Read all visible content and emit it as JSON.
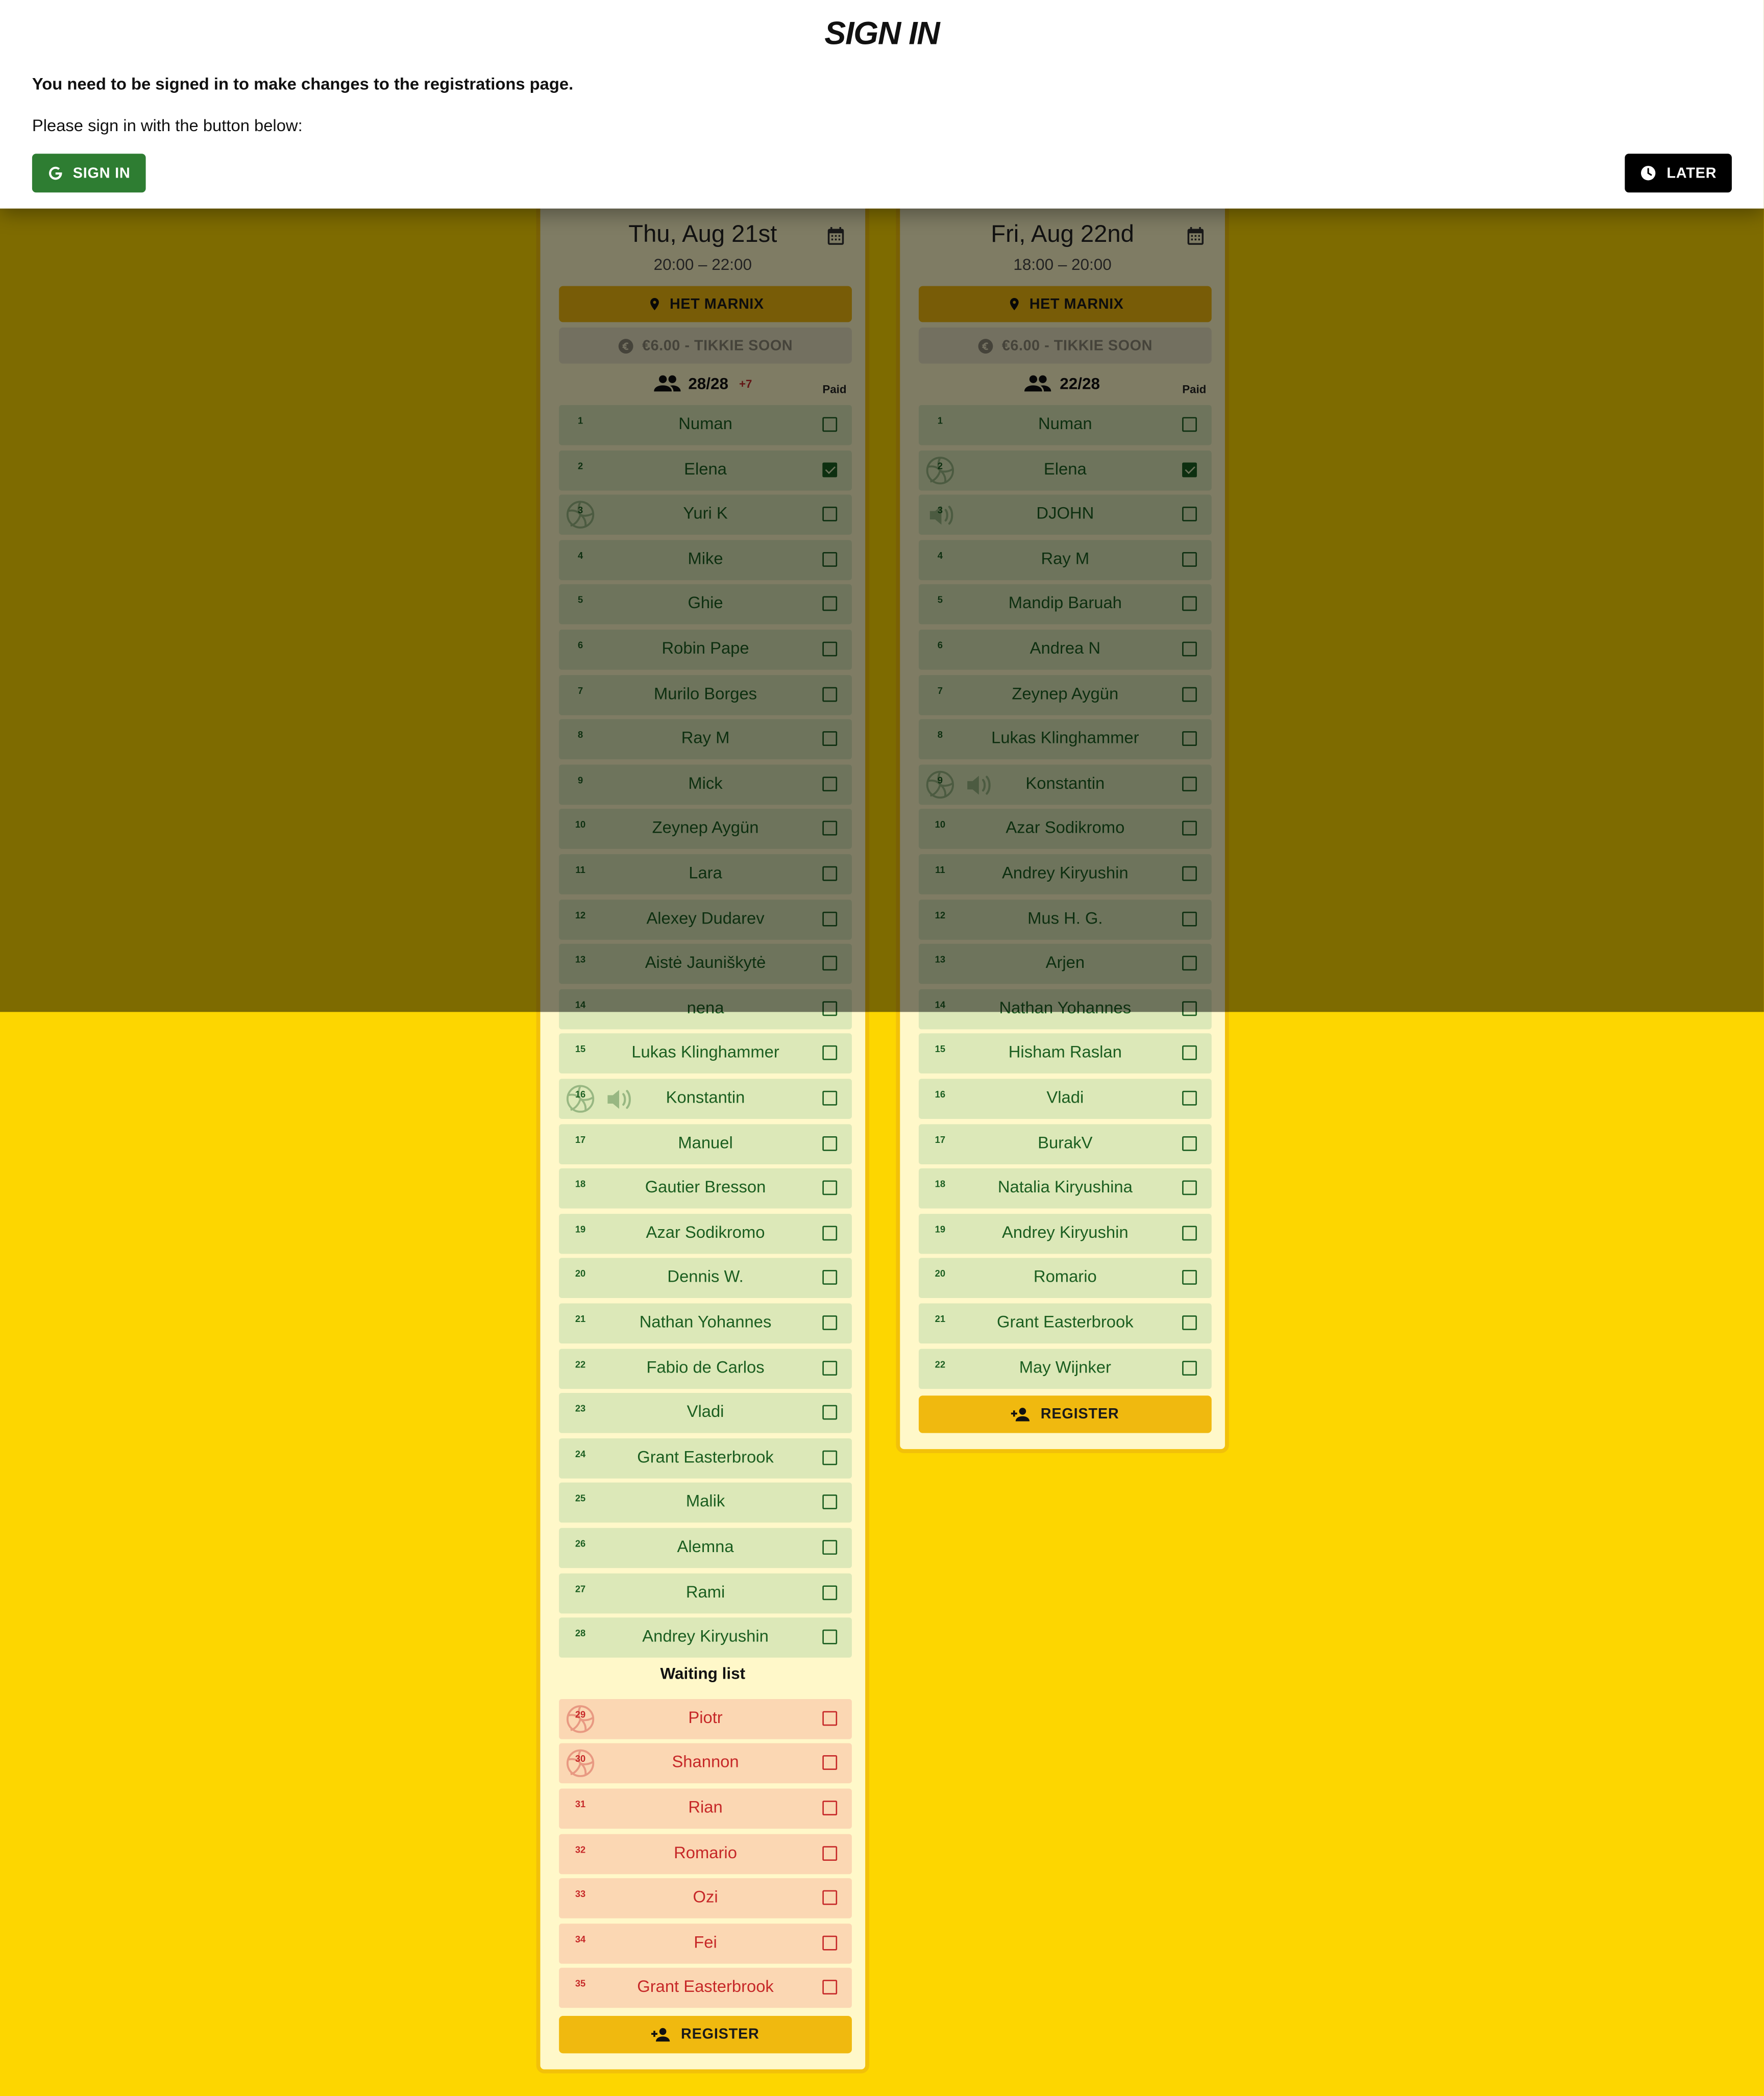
{
  "dialog": {
    "title": "SIGN IN",
    "message": "You need to be signed in to make changes to the registrations page.",
    "instruction": "Please sign in with the button below:",
    "signin_label": "SIGN IN",
    "later_label": "LATER"
  },
  "colors": {
    "page_bg": "#fdd600",
    "card_bg": "#fff8c9",
    "accent": "#f0b90f",
    "confirmed_row": "#dce8b8",
    "waiting_row": "#fbd7b3",
    "signin_green": "#2e7d32"
  },
  "events": [
    {
      "title": "Thu, Aug 21st",
      "time": "20:00 – 22:00",
      "location": "HET MARNIX",
      "price": "€6.00 - TIKKIE SOON",
      "count": "28/28",
      "extra": "+7",
      "paid_label": "Paid",
      "players": [
        {
          "num": "1",
          "name": "Numan",
          "paid": false,
          "icons": []
        },
        {
          "num": "2",
          "name": "Elena",
          "paid": true,
          "icons": []
        },
        {
          "num": "3",
          "name": "Yuri K",
          "paid": false,
          "icons": [
            "ball-icon"
          ]
        },
        {
          "num": "4",
          "name": "Mike",
          "paid": false,
          "icons": []
        },
        {
          "num": "5",
          "name": "Ghie",
          "paid": false,
          "icons": []
        },
        {
          "num": "6",
          "name": "Robin Pape",
          "paid": false,
          "icons": []
        },
        {
          "num": "7",
          "name": "Murilo Borges",
          "paid": false,
          "icons": []
        },
        {
          "num": "8",
          "name": "Ray M",
          "paid": false,
          "icons": []
        },
        {
          "num": "9",
          "name": "Mick",
          "paid": false,
          "icons": []
        },
        {
          "num": "10",
          "name": "Zeynep Aygün",
          "paid": false,
          "icons": []
        },
        {
          "num": "11",
          "name": "Lara",
          "paid": false,
          "icons": []
        },
        {
          "num": "12",
          "name": "Alexey Dudarev",
          "paid": false,
          "icons": []
        },
        {
          "num": "13",
          "name": "Aistė Jauniškytė",
          "paid": false,
          "icons": []
        },
        {
          "num": "14",
          "name": "nena",
          "paid": false,
          "icons": []
        },
        {
          "num": "15",
          "name": "Lukas Klinghammer",
          "paid": false,
          "icons": []
        },
        {
          "num": "16",
          "name": "Konstantin",
          "paid": false,
          "icons": [
            "ball-icon",
            "speaker-icon"
          ]
        },
        {
          "num": "17",
          "name": "Manuel",
          "paid": false,
          "icons": []
        },
        {
          "num": "18",
          "name": "Gautier Bresson",
          "paid": false,
          "icons": []
        },
        {
          "num": "19",
          "name": "Azar Sodikromo",
          "paid": false,
          "icons": []
        },
        {
          "num": "20",
          "name": "Dennis W.",
          "paid": false,
          "icons": []
        },
        {
          "num": "21",
          "name": "Nathan Yohannes",
          "paid": false,
          "icons": []
        },
        {
          "num": "22",
          "name": "Fabio de Carlos",
          "paid": false,
          "icons": []
        },
        {
          "num": "23",
          "name": "Vladi",
          "paid": false,
          "icons": []
        },
        {
          "num": "24",
          "name": "Grant Easterbrook",
          "paid": false,
          "icons": []
        },
        {
          "num": "25",
          "name": "Malik",
          "paid": false,
          "icons": []
        },
        {
          "num": "26",
          "name": "Alemna",
          "paid": false,
          "icons": []
        },
        {
          "num": "27",
          "name": "Rami",
          "paid": false,
          "icons": []
        },
        {
          "num": "28",
          "name": "Andrey Kiryushin",
          "paid": false,
          "icons": []
        }
      ],
      "waiting_title": "Waiting list",
      "waiting": [
        {
          "num": "29",
          "name": "Piotr",
          "paid": false,
          "icons": [
            "ball-icon"
          ]
        },
        {
          "num": "30",
          "name": "Shannon",
          "paid": false,
          "icons": [
            "ball-icon"
          ]
        },
        {
          "num": "31",
          "name": "Rian",
          "paid": false,
          "icons": []
        },
        {
          "num": "32",
          "name": "Romario",
          "paid": false,
          "icons": []
        },
        {
          "num": "33",
          "name": "Ozi",
          "paid": false,
          "icons": []
        },
        {
          "num": "34",
          "name": "Fei",
          "paid": false,
          "icons": []
        },
        {
          "num": "35",
          "name": "Grant Easterbrook",
          "paid": false,
          "icons": []
        }
      ],
      "register_label": "REGISTER"
    },
    {
      "title": "Fri, Aug 22nd",
      "time": "18:00 – 20:00",
      "location": "HET MARNIX",
      "price": "€6.00 - TIKKIE SOON",
      "count": "22/28",
      "extra": "",
      "paid_label": "Paid",
      "players": [
        {
          "num": "1",
          "name": "Numan",
          "paid": false,
          "icons": []
        },
        {
          "num": "2",
          "name": "Elena",
          "paid": true,
          "icons": [
            "ball-icon"
          ]
        },
        {
          "num": "3",
          "name": "DJOHN",
          "paid": false,
          "icons": [
            "speaker-icon"
          ]
        },
        {
          "num": "4",
          "name": "Ray M",
          "paid": false,
          "icons": []
        },
        {
          "num": "5",
          "name": "Mandip Baruah",
          "paid": false,
          "icons": []
        },
        {
          "num": "6",
          "name": "Andrea N",
          "paid": false,
          "icons": []
        },
        {
          "num": "7",
          "name": "Zeynep Aygün",
          "paid": false,
          "icons": []
        },
        {
          "num": "8",
          "name": "Lukas Klinghammer",
          "paid": false,
          "icons": []
        },
        {
          "num": "9",
          "name": "Konstantin",
          "paid": false,
          "icons": [
            "ball-icon",
            "speaker-icon"
          ]
        },
        {
          "num": "10",
          "name": "Azar Sodikromo",
          "paid": false,
          "icons": []
        },
        {
          "num": "11",
          "name": "Andrey Kiryushin",
          "paid": false,
          "icons": []
        },
        {
          "num": "12",
          "name": "Mus H. G.",
          "paid": false,
          "icons": []
        },
        {
          "num": "13",
          "name": "Arjen",
          "paid": false,
          "icons": []
        },
        {
          "num": "14",
          "name": "Nathan Yohannes",
          "paid": false,
          "icons": []
        },
        {
          "num": "15",
          "name": "Hisham Raslan",
          "paid": false,
          "icons": []
        },
        {
          "num": "16",
          "name": "Vladi",
          "paid": false,
          "icons": []
        },
        {
          "num": "17",
          "name": "BurakV",
          "paid": false,
          "icons": []
        },
        {
          "num": "18",
          "name": "Natalia Kiryushina",
          "paid": false,
          "icons": []
        },
        {
          "num": "19",
          "name": "Andrey Kiryushin",
          "paid": false,
          "icons": []
        },
        {
          "num": "20",
          "name": "Romario",
          "paid": false,
          "icons": []
        },
        {
          "num": "21",
          "name": "Grant Easterbrook",
          "paid": false,
          "icons": []
        },
        {
          "num": "22",
          "name": "May Wijnker",
          "paid": false,
          "icons": []
        }
      ],
      "waiting_title": "",
      "waiting": [],
      "register_label": "REGISTER"
    }
  ]
}
